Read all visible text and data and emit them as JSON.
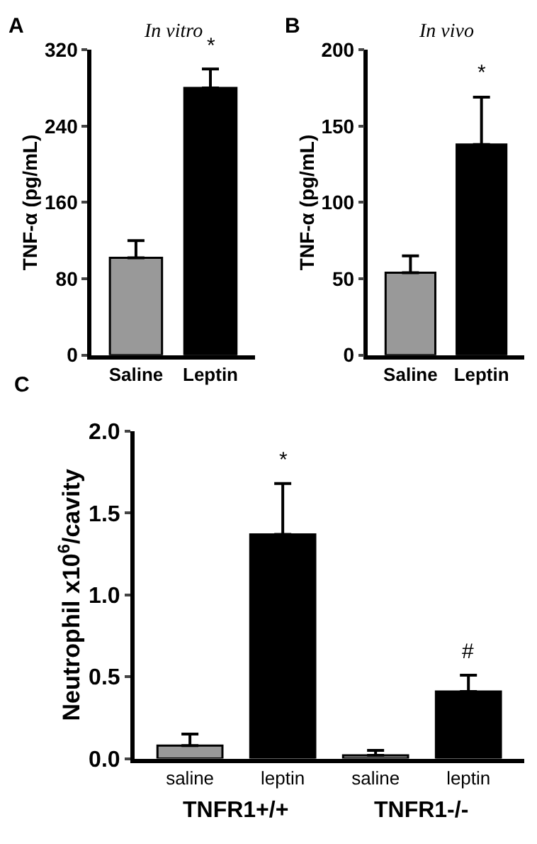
{
  "chart_data": [
    {
      "type": "bar",
      "title": "In vitro",
      "ylabel": "TNF-α (pg/mL)",
      "categories": [
        "Saline",
        "Leptin"
      ],
      "values": [
        102,
        280
      ],
      "errors": [
        18,
        20
      ],
      "colors": [
        "#999999",
        "#000000"
      ],
      "value_labels": [
        null,
        "*"
      ],
      "ylim": [
        0,
        320
      ],
      "yticks": [
        0,
        80,
        160,
        240,
        320
      ],
      "annotations": [
        "A"
      ]
    },
    {
      "type": "bar",
      "title": "In vivo",
      "ylabel": "TNF-α (pg/mL)",
      "categories": [
        "Saline",
        "Leptin"
      ],
      "values": [
        54,
        138
      ],
      "errors": [
        11,
        31
      ],
      "colors": [
        "#999999",
        "#000000"
      ],
      "value_labels": [
        null,
        "*"
      ],
      "ylim": [
        0,
        200
      ],
      "yticks": [
        0,
        50,
        100,
        150,
        200
      ],
      "annotations": [
        "B"
      ]
    },
    {
      "type": "bar",
      "ylabel": "Neutrophil x10$^{6}$/cavity",
      "categories": [
        "saline",
        "leptin",
        "saline",
        "leptin"
      ],
      "values": [
        0.08,
        1.37,
        0.02,
        0.41
      ],
      "errors": [
        0.07,
        0.31,
        0.03,
        0.1
      ],
      "colors": [
        "#999999",
        "#000000",
        "#999999",
        "#000000"
      ],
      "value_labels": [
        null,
        "*",
        null,
        "#"
      ],
      "ylim": [
        0,
        2.0
      ],
      "yticks": [
        {
          "value": 0,
          "label": "0.0"
        },
        0.5,
        {
          "value": 1,
          "label": "1.0"
        },
        1.5,
        {
          "value": 2,
          "label": "2.0"
        }
      ],
      "annotations": [
        "C",
        "TNFR1+/+",
        "TNFR1-/-"
      ]
    }
  ]
}
